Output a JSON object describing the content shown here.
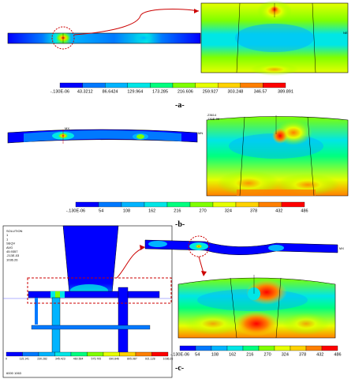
{
  "colors": {
    "scale": [
      "#0000ff",
      "#0079ff",
      "#00b4ff",
      "#00e6e6",
      "#00ff7f",
      "#7fff00",
      "#e6ff00",
      "#ffd200",
      "#ff7f00",
      "#ff0000"
    ],
    "frame": "#000000",
    "callout": "#cc0000"
  },
  "panel_a": {
    "label": "-a-",
    "legend": [
      "-.130E-06",
      "43.3212",
      "86.6424",
      "129.964",
      "173.285",
      "216.606",
      "259.927",
      "303.248",
      "346.57",
      "389.891"
    ]
  },
  "panel_b": {
    "label": "-b-",
    "legend": [
      "-.130E-06",
      "54",
      "108",
      "162",
      "216",
      "270",
      "324",
      "378",
      "432",
      "486"
    ],
    "mx_text": "MX",
    "mn_text": "MN",
    "detail_header": [
      ".23614",
      ".130E-06"
    ]
  },
  "panel_c": {
    "label": "-c-",
    "legend": [
      "-.130E-06",
      "54",
      "108",
      "162",
      "216",
      "270",
      "324",
      "378",
      "432",
      "486"
    ],
    "ansys_info": [
      "SOLUTION",
      "1",
      "1",
      "SEQV",
      "AVG",
      "45.9357",
      ".213E-03",
      "1036.26"
    ],
    "small_legend": [
      "0",
      "115.141",
      "230.282",
      "345.423",
      "460.564",
      "575.705",
      "690.846",
      "805.987",
      "921.128",
      "1036.26"
    ],
    "footer": "6000 1063"
  }
}
